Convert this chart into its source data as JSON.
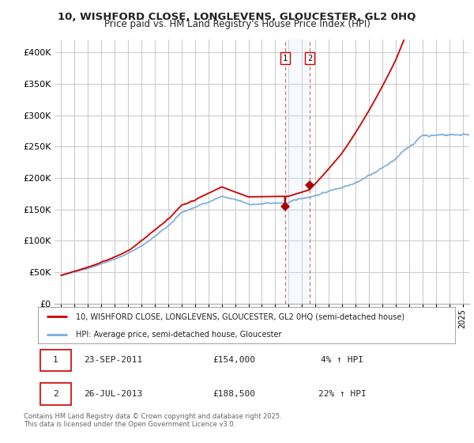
{
  "title_line1": "10, WISHFORD CLOSE, LONGLEVENS, GLOUCESTER, GL2 0HQ",
  "title_line2": "Price paid vs. HM Land Registry's House Price Index (HPI)",
  "legend_label1": "10, WISHFORD CLOSE, LONGLEVENS, GLOUCESTER, GL2 0HQ (semi-detached house)",
  "legend_label2": "HPI: Average price, semi-detached house, Gloucester",
  "footnote": "Contains HM Land Registry data © Crown copyright and database right 2025.\nThis data is licensed under the Open Government Licence v3.0.",
  "annotation1_date": "23-SEP-2011",
  "annotation1_price": "£154,000",
  "annotation1_hpi": "4% ↑ HPI",
  "annotation2_date": "26-JUL-2013",
  "annotation2_price": "£188,500",
  "annotation2_hpi": "22% ↑ HPI",
  "sale1_x": 2011.73,
  "sale1_y": 154000,
  "sale2_x": 2013.57,
  "sale2_y": 188500,
  "line1_color": "#cc0000",
  "line2_color": "#7aacda",
  "dot_color": "#aa0000",
  "vline_color": "#cc0000",
  "shade_color": "#ddeeff",
  "ylim": [
    0,
    420000
  ],
  "yticks": [
    0,
    50000,
    100000,
    150000,
    200000,
    250000,
    300000,
    350000,
    400000
  ],
  "ytick_labels": [
    "£0",
    "£50K",
    "£100K",
    "£150K",
    "£200K",
    "£250K",
    "£300K",
    "£350K",
    "£400K"
  ],
  "xlim_start": 1994.5,
  "xlim_end": 2025.5,
  "background_color": "#ffffff",
  "grid_color": "#cccccc"
}
